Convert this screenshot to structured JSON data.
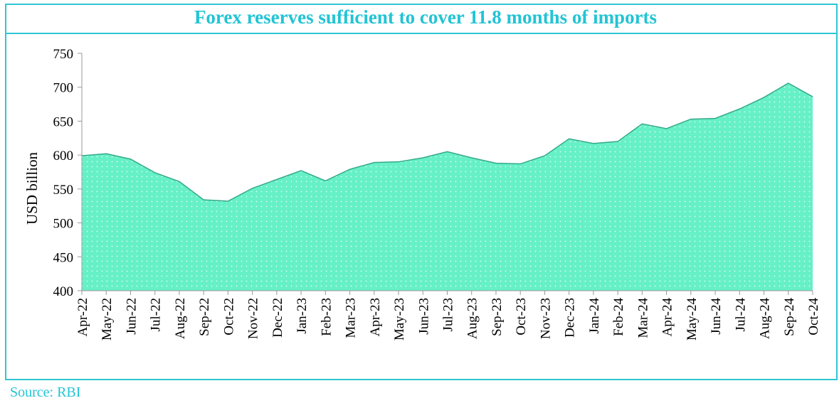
{
  "chart_data": {
    "type": "area",
    "title": "Forex reserves sufficient to cover 11.8 months of imports",
    "ylabel": "USD billion",
    "source": "Source: RBI",
    "categories": [
      "Apr-22",
      "May-22",
      "Jun-22",
      "Jul-22",
      "Aug-22",
      "Sep-22",
      "Oct-22",
      "Nov-22",
      "Dec-22",
      "Jan-23",
      "Feb-23",
      "Mar-23",
      "Apr-23",
      "May-23",
      "Jun-23",
      "Jul-23",
      "Aug-23",
      "Sep-23",
      "Oct-23",
      "Nov-23",
      "Dec-23",
      "Jan-24",
      "Feb-24",
      "Mar-24",
      "Apr-24",
      "May-24",
      "Jun-24",
      "Jul-24",
      "Aug-24",
      "Sep-24",
      "Oct-24"
    ],
    "values": [
      599,
      602,
      594,
      574,
      561,
      534,
      532,
      551,
      564,
      577,
      562,
      579,
      589,
      590,
      596,
      605,
      596,
      588,
      587,
      599,
      624,
      617,
      620,
      646,
      639,
      653,
      654,
      668,
      685,
      706,
      686
    ],
    "color": "#66f0c6",
    "line_color": "#35a98a",
    "ylim": [
      400,
      750
    ],
    "yticks": [
      400,
      450,
      500,
      550,
      600,
      650,
      700,
      750
    ],
    "grid": false
  }
}
